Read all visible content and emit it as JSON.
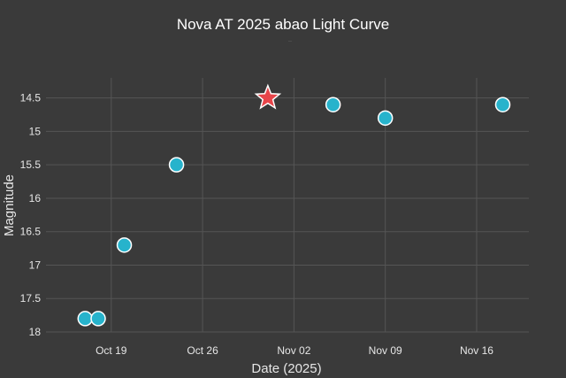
{
  "chart_data": {
    "type": "scatter",
    "title": "Nova AT 2025 abao Light Curve",
    "subtitle": "··",
    "xlabel": "Date (2025)",
    "ylabel": "Magnitude",
    "x_ticks": [
      {
        "label": "Oct 19",
        "date": "2025-10-19"
      },
      {
        "label": "Oct 26",
        "date": "2025-10-26"
      },
      {
        "label": "Nov 02",
        "date": "2025-11-02"
      },
      {
        "label": "Nov 09",
        "date": "2025-11-09"
      },
      {
        "label": "Nov 16",
        "date": "2025-11-16"
      }
    ],
    "y_ticks": [
      "14.5",
      "15",
      "15.5",
      "16",
      "16.5",
      "17",
      "17.5",
      "18"
    ],
    "xlim": [
      "2025-10-14",
      "2025-11-20"
    ],
    "ylim": [
      18.0,
      14.2
    ],
    "y_inverted": true,
    "grid": true,
    "series": [
      {
        "marker": "circle",
        "color": "#27b3cc",
        "points": [
          {
            "x": "2025-10-17",
            "y": 17.8
          },
          {
            "x": "2025-10-18",
            "y": 17.8
          },
          {
            "x": "2025-10-20",
            "y": 16.7
          },
          {
            "x": "2025-10-24",
            "y": 15.5
          },
          {
            "x": "2025-11-05",
            "y": 14.6
          },
          {
            "x": "2025-11-09",
            "y": 14.8
          },
          {
            "x": "2025-11-18",
            "y": 14.6
          }
        ]
      },
      {
        "marker": "star",
        "color": "#e8454a",
        "points": [
          {
            "x": "2025-10-31",
            "y": 14.5
          }
        ]
      }
    ]
  }
}
